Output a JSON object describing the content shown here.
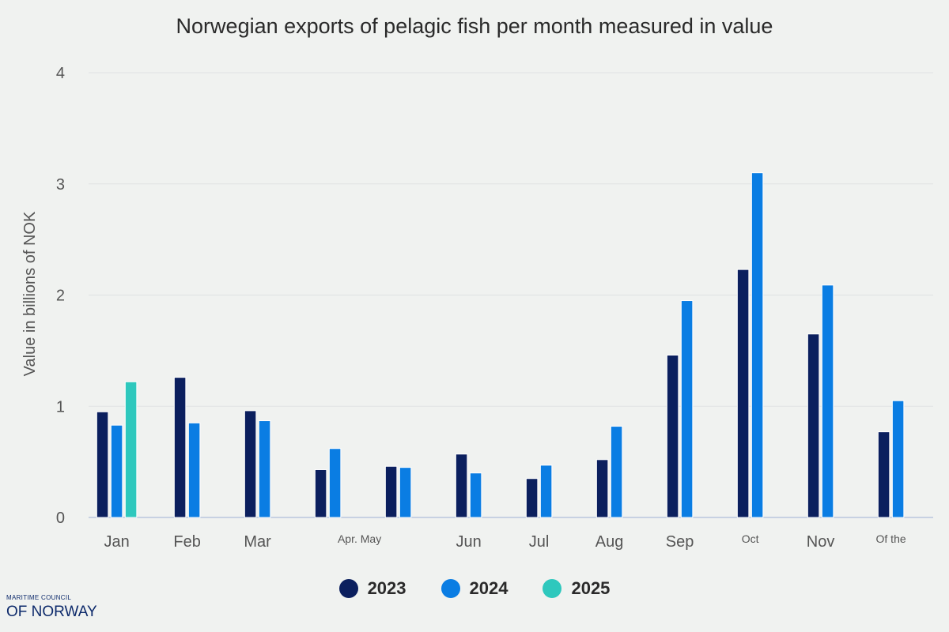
{
  "chart_data": {
    "type": "bar",
    "title": "Norwegian exports of pelagic fish per month measured in value",
    "ylabel": "Value in billions of NOK",
    "xlabel": "",
    "ylim": [
      0,
      4
    ],
    "yticks": [
      0,
      1,
      2,
      3,
      4
    ],
    "grid": true,
    "legend_position": "bottom",
    "categories": [
      "Jan",
      "Feb",
      "Mar",
      "Apr. May",
      "",
      "Jun",
      "Jul",
      "Aug",
      "Sep",
      "Oct",
      "Nov",
      "Of the"
    ],
    "series": [
      {
        "name": "2023",
        "color": "#0b1f5e",
        "values": [
          0.95,
          1.26,
          0.96,
          0.43,
          0.46,
          0.57,
          0.35,
          0.52,
          1.46,
          2.23,
          1.65,
          0.77
        ]
      },
      {
        "name": "2024",
        "color": "#0a7de3",
        "values": [
          0.83,
          0.85,
          0.87,
          0.62,
          0.45,
          0.4,
          0.47,
          0.82,
          1.95,
          3.1,
          2.09,
          1.05
        ]
      },
      {
        "name": "2025",
        "color": "#2ec8bd",
        "values": [
          1.22,
          null,
          null,
          null,
          null,
          null,
          null,
          null,
          null,
          null,
          null,
          null
        ]
      }
    ]
  },
  "branding": {
    "line1": "MARITIME COUNCIL",
    "line2": "OF NORWAY"
  }
}
